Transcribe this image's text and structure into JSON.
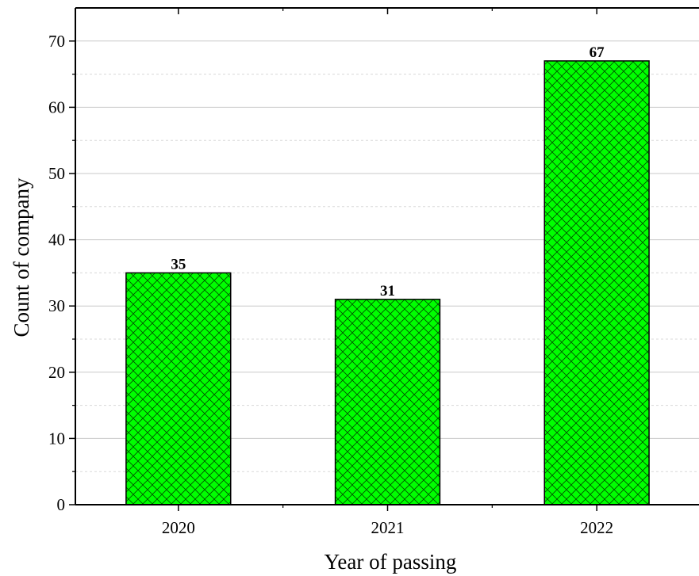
{
  "chart_data": {
    "type": "bar",
    "categories": [
      "2020",
      "2021",
      "2022"
    ],
    "values": [
      35,
      31,
      67
    ],
    "data_labels": [
      "35",
      "31",
      "67"
    ],
    "title": "",
    "xlabel": "Year of passing",
    "ylabel": "Count of company",
    "ylim": [
      0,
      75
    ],
    "yticks": [
      0,
      10,
      20,
      30,
      40,
      50,
      60,
      70
    ],
    "ytick_labels": [
      "0",
      "10",
      "20",
      "30",
      "40",
      "50",
      "60",
      "70"
    ],
    "grid": "horizontal-dashed",
    "legend": "none",
    "bar_color": "#00ff00",
    "bar_pattern": "crosshatch",
    "grid_color": "#c8c8c8"
  }
}
